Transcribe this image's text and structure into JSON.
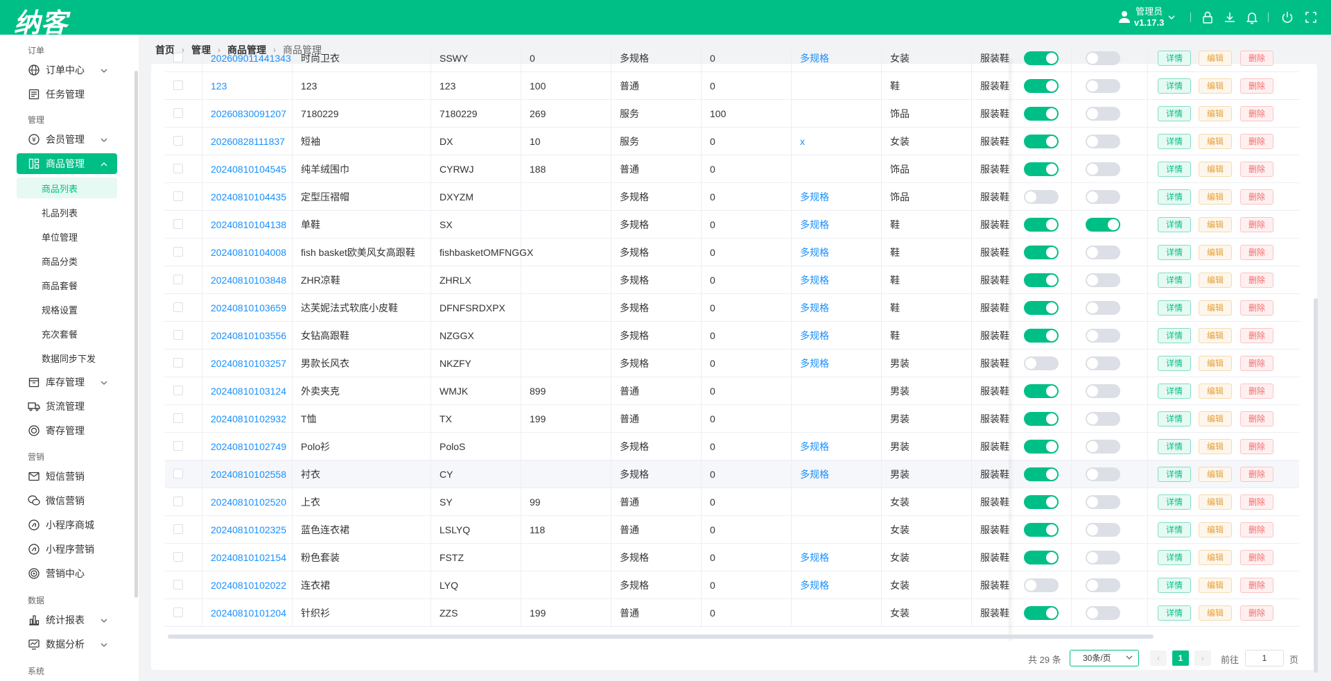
{
  "app": {
    "logo": "纳客",
    "user_name": "管理员",
    "version": "v1.17.3",
    "accent": "#00bf86",
    "top_icons": [
      "lock-icon",
      "download-icon",
      "bell-icon",
      "power-icon",
      "fullscreen-icon"
    ]
  },
  "breadcrumb": [
    "首页",
    "管理",
    "商品管理",
    "商品管理"
  ],
  "sidebar": {
    "groups": [
      {
        "label": "订单",
        "items": [
          {
            "label": "订单中心",
            "icon": "globe-icon",
            "expandable": true
          },
          {
            "label": "任务管理",
            "icon": "task-icon",
            "expandable": false
          }
        ]
      },
      {
        "label": "管理",
        "items": [
          {
            "label": "会员管理",
            "icon": "member-icon",
            "expandable": true
          },
          {
            "label": "商品管理",
            "icon": "grid-icon",
            "expandable": true,
            "active": true,
            "children": [
              "商品列表",
              "礼品列表",
              "单位管理",
              "商品分类",
              "商品套餐",
              "规格设置",
              "充次套餐",
              "数据同步下发"
            ]
          },
          {
            "label": "库存管理",
            "icon": "inventory-icon",
            "expandable": true
          },
          {
            "label": "货流管理",
            "icon": "truck-icon",
            "expandable": false
          },
          {
            "label": "寄存管理",
            "icon": "deposit-icon",
            "expandable": false
          }
        ]
      },
      {
        "label": "营销",
        "items": [
          {
            "label": "短信营销",
            "icon": "mail-icon",
            "expandable": false
          },
          {
            "label": "微信营销",
            "icon": "wechat-icon",
            "expandable": false
          },
          {
            "label": "小程序商城",
            "icon": "miniapp-icon",
            "expandable": false
          },
          {
            "label": "小程序营销",
            "icon": "miniapp-icon",
            "expandable": false
          },
          {
            "label": "营销中心",
            "icon": "target-icon",
            "expandable": false
          }
        ]
      },
      {
        "label": "数据",
        "items": [
          {
            "label": "统计报表",
            "icon": "chart-icon",
            "expandable": true
          },
          {
            "label": "数据分析",
            "icon": "analysis-icon",
            "expandable": true
          }
        ]
      },
      {
        "label": "系统",
        "items": []
      }
    ]
  },
  "table": {
    "action_labels": {
      "detail": "详情",
      "edit": "编辑",
      "delete": "删除"
    },
    "rows": [
      {
        "code": "202609011441343",
        "name": "时尚卫衣",
        "abbr": "SSWY",
        "price": "0",
        "type": "多规格",
        "stock": "0",
        "spec": "多规格",
        "category": "女装",
        "dept": "服装鞋",
        "sw1": true,
        "sw2": false
      },
      {
        "code": "123",
        "name": "123",
        "abbr": "123",
        "price": "100",
        "type": "普通",
        "stock": "0",
        "spec": "",
        "category": "鞋",
        "dept": "服装鞋",
        "sw1": true,
        "sw2": false
      },
      {
        "code": "20260830091207",
        "name": "7180229",
        "abbr": "7180229",
        "price": "269",
        "type": "服务",
        "stock": "100",
        "spec": "",
        "category": "饰品",
        "dept": "服装鞋",
        "sw1": true,
        "sw2": false
      },
      {
        "code": "20260828111837",
        "name": "短袖",
        "abbr": "DX",
        "price": "10",
        "type": "服务",
        "stock": "0",
        "spec": "x",
        "category": "女装",
        "dept": "服装鞋",
        "sw1": true,
        "sw2": false
      },
      {
        "code": "20240810104545",
        "name": "纯羊绒围巾",
        "abbr": "CYRWJ",
        "price": "188",
        "type": "普通",
        "stock": "0",
        "spec": "",
        "category": "饰品",
        "dept": "服装鞋",
        "sw1": true,
        "sw2": false
      },
      {
        "code": "20240810104435",
        "name": "定型压褶帽",
        "abbr": "DXYZM",
        "price": "",
        "type": "多规格",
        "stock": "0",
        "spec": "多规格",
        "category": "饰品",
        "dept": "服装鞋",
        "sw1": false,
        "sw2": false
      },
      {
        "code": "20240810104138",
        "name": "单鞋",
        "abbr": "SX",
        "price": "",
        "type": "多规格",
        "stock": "0",
        "spec": "多规格",
        "category": "鞋",
        "dept": "服装鞋",
        "sw1": true,
        "sw2": true
      },
      {
        "code": "20240810104008",
        "name": "fish basket欧美风女高跟鞋",
        "abbr": "fishbasketOMFNGGX",
        "price": "",
        "type": "多规格",
        "stock": "0",
        "spec": "多规格",
        "category": "鞋",
        "dept": "服装鞋",
        "sw1": true,
        "sw2": false
      },
      {
        "code": "20240810103848",
        "name": "ZHR凉鞋",
        "abbr": "ZHRLX",
        "price": "",
        "type": "多规格",
        "stock": "0",
        "spec": "多规格",
        "category": "鞋",
        "dept": "服装鞋",
        "sw1": true,
        "sw2": false
      },
      {
        "code": "20240810103659",
        "name": "达芙妮法式软底小皮鞋",
        "abbr": "DFNFSRDXPX",
        "price": "",
        "type": "多规格",
        "stock": "0",
        "spec": "多规格",
        "category": "鞋",
        "dept": "服装鞋",
        "sw1": true,
        "sw2": false
      },
      {
        "code": "20240810103556",
        "name": "女钻高跟鞋",
        "abbr": "NZGGX",
        "price": "",
        "type": "多规格",
        "stock": "0",
        "spec": "多规格",
        "category": "鞋",
        "dept": "服装鞋",
        "sw1": true,
        "sw2": false
      },
      {
        "code": "20240810103257",
        "name": "男款长风衣",
        "abbr": "NKZFY",
        "price": "",
        "type": "多规格",
        "stock": "0",
        "spec": "多规格",
        "category": "男装",
        "dept": "服装鞋",
        "sw1": false,
        "sw2": false
      },
      {
        "code": "20240810103124",
        "name": "外卖夹克",
        "abbr": "WMJK",
        "price": "899",
        "type": "普通",
        "stock": "0",
        "spec": "",
        "category": "男装",
        "dept": "服装鞋",
        "sw1": true,
        "sw2": false
      },
      {
        "code": "20240810102932",
        "name": "T恤",
        "abbr": "TX",
        "price": "199",
        "type": "普通",
        "stock": "0",
        "spec": "",
        "category": "男装",
        "dept": "服装鞋",
        "sw1": true,
        "sw2": false
      },
      {
        "code": "20240810102749",
        "name": "Polo衫",
        "abbr": "PoloS",
        "price": "",
        "type": "多规格",
        "stock": "0",
        "spec": "多规格",
        "category": "男装",
        "dept": "服装鞋",
        "sw1": true,
        "sw2": false
      },
      {
        "code": "20240810102558",
        "name": "衬衣",
        "abbr": "CY",
        "price": "",
        "type": "多规格",
        "stock": "0",
        "spec": "多规格",
        "category": "男装",
        "dept": "服装鞋",
        "sw1": true,
        "sw2": false,
        "highlight": true
      },
      {
        "code": "20240810102520",
        "name": "上衣",
        "abbr": "SY",
        "price": "99",
        "type": "普通",
        "stock": "0",
        "spec": "",
        "category": "女装",
        "dept": "服装鞋",
        "sw1": true,
        "sw2": false
      },
      {
        "code": "20240810102325",
        "name": "蓝色连衣裙",
        "abbr": "LSLYQ",
        "price": "118",
        "type": "普通",
        "stock": "0",
        "spec": "",
        "category": "女装",
        "dept": "服装鞋",
        "sw1": true,
        "sw2": false
      },
      {
        "code": "20240810102154",
        "name": "粉色套装",
        "abbr": "FSTZ",
        "price": "",
        "type": "多规格",
        "stock": "0",
        "spec": "多规格",
        "category": "女装",
        "dept": "服装鞋",
        "sw1": true,
        "sw2": false
      },
      {
        "code": "20240810102022",
        "name": "连衣裙",
        "abbr": "LYQ",
        "price": "",
        "type": "多规格",
        "stock": "0",
        "spec": "多规格",
        "category": "女装",
        "dept": "服装鞋",
        "sw1": false,
        "sw2": false
      },
      {
        "code": "20240810101204",
        "name": "针织衫",
        "abbr": "ZZS",
        "price": "199",
        "type": "普通",
        "stock": "0",
        "spec": "",
        "category": "女装",
        "dept": "服装鞋",
        "sw1": true,
        "sw2": false
      }
    ]
  },
  "pagination": {
    "total_text": "共 29 条",
    "page_size": "30条/页",
    "prev": "‹",
    "next": "›",
    "current": "1",
    "goto_label": "前往",
    "goto_value": "1",
    "page_suffix": "页"
  }
}
